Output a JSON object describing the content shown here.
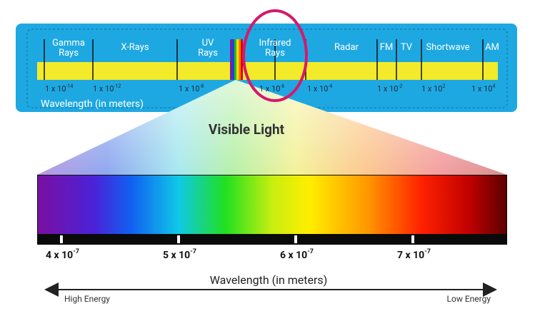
{
  "spectrum": {
    "bands": [
      {
        "lines": [
          "Gamma",
          "Rays"
        ]
      },
      {
        "lines": [
          "X-Rays"
        ]
      },
      {
        "lines": [
          "UV",
          "Rays"
        ]
      },
      {
        "lines": [
          "Infrared",
          "Rays"
        ]
      },
      {
        "lines": [
          "Radar"
        ]
      },
      {
        "lines": [
          "FM"
        ]
      },
      {
        "lines": [
          "TV"
        ]
      },
      {
        "lines": [
          "Shortwave"
        ]
      },
      {
        "lines": [
          "AM"
        ]
      }
    ],
    "wavelengths": [
      {
        "base": "1 x 10",
        "exp": "-14"
      },
      {
        "base": "1 x 10",
        "exp": "-12"
      },
      {
        "base": "1 x 10",
        "exp": "-8"
      },
      {
        "base": "1 x 10",
        "exp": "-6"
      },
      {
        "base": "1 x 10",
        "exp": "-4"
      },
      {
        "base": "1 x 10",
        "exp": "-2"
      },
      {
        "base": "1 x 10",
        "exp": "2"
      },
      {
        "base": "1 x 10",
        "exp": "4"
      }
    ],
    "axis_label": "Wavelength (in meters)"
  },
  "visible": {
    "title": "Visible Light",
    "ticks": [
      {
        "base": "4 x 10",
        "exp": "-7"
      },
      {
        "base": "5 x 10",
        "exp": "-7"
      },
      {
        "base": "6 x 10",
        "exp": "-7"
      },
      {
        "base": "7 x 10",
        "exp": "-7"
      }
    ],
    "axis_label": "Wavelength (in meters)",
    "high_label": "High Energy",
    "low_label": "Low Energy"
  }
}
